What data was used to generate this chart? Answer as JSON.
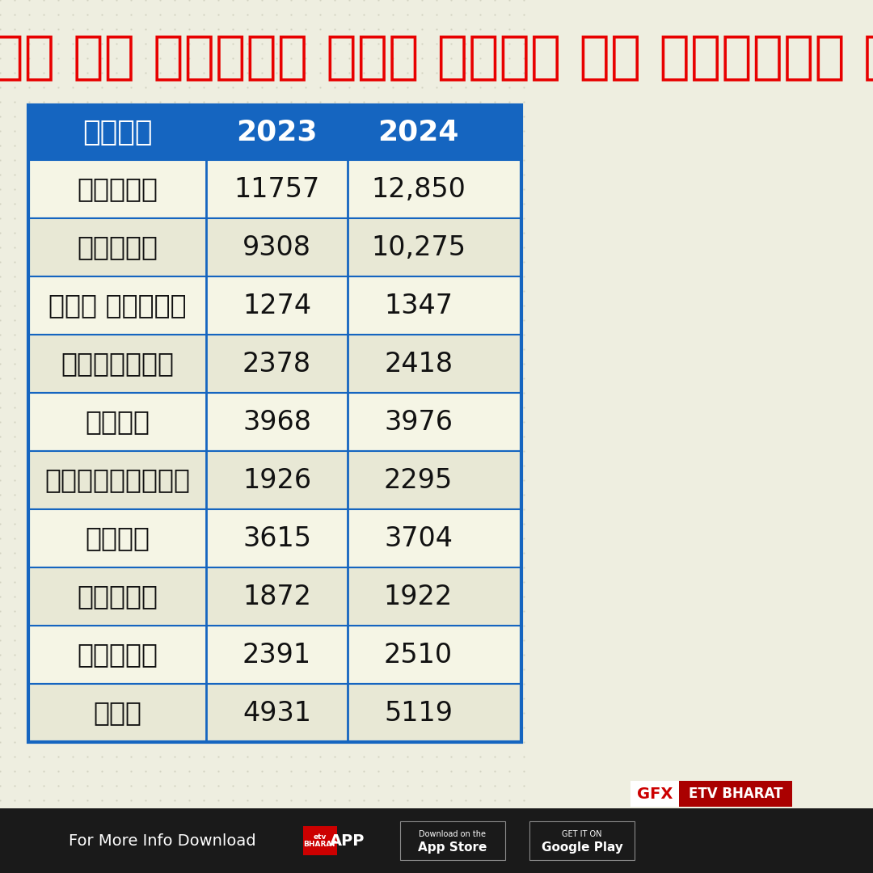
{
  "title_line1": "मध्य प्रदेश के जिलों में टीबी के मरीजों की संख्या",
  "title_color": "#E80000",
  "bg_color": "#EEEEE0",
  "dot_color": "#DDDDCC",
  "header_bg": "#1565C0",
  "header_text_color": "#FFFFFF",
  "row_bg_even": "#F5F5E5",
  "row_bg_odd": "#E8E8D5",
  "table_border_color": "#1565C0",
  "col_headers": [
    "जिला",
    "2023",
    "2024"
  ],
  "rows": [
    [
      "भोपाल",
      "11757",
      "12,850"
    ],
    [
      "इंदौर",
      "9308",
      "10,275"
    ],
    [
      "आगर मालवा",
      "1274",
      "1347"
    ],
    [
      "बड़वानी",
      "2378",
      "2418"
    ],
    [
      "भिंड",
      "3968",
      "3976"
    ],
    [
      "बुरहानपुर",
      "1926",
      "2295"
    ],
    [
      "दमोह",
      "3615",
      "3704"
    ],
    [
      "दतिया",
      "1872",
      "1922"
    ],
    [
      "देवास",
      "2391",
      "2510"
    ],
    [
      "धार",
      "4931",
      "5119"
    ]
  ],
  "footer_bg": "#1A1A1A",
  "footer_text": "For More Info Download",
  "brand_gfx": "GFX",
  "brand_etv": "ETV BHARAT",
  "brand_gfx_bg": "#FFFFFF",
  "brand_gfx_color": "#CC0000",
  "brand_etv_bg": "#AA0000",
  "brand_etv_color": "#FFFFFF"
}
